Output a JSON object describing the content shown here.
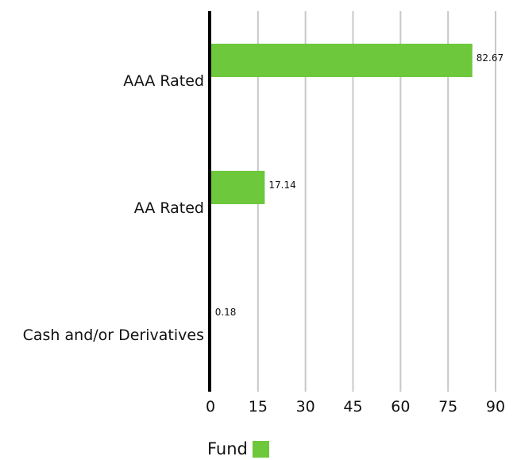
{
  "chart_data": {
    "type": "bar",
    "orientation": "horizontal",
    "categories": [
      "AAA Rated",
      "AA Rated",
      "Cash and/or Derivatives"
    ],
    "series": [
      {
        "name": "Fund",
        "values": [
          82.67,
          17.14,
          0.18
        ],
        "color": "#6dc83c"
      }
    ],
    "data_labels": [
      "82.67",
      "17.14",
      "0.18"
    ],
    "xlim": [
      0,
      90
    ],
    "xticks": [
      0,
      15,
      30,
      45,
      60,
      75,
      90
    ],
    "xtick_labels": [
      "0",
      "15",
      "30",
      "45",
      "60",
      "75",
      "90"
    ],
    "grid": "vertical",
    "legend_placement": "bottom"
  },
  "colors": {
    "bar": "#6dc83c",
    "grid": "#c8c8c8",
    "axis": "#000000"
  },
  "legend": {
    "label": "Fund"
  }
}
